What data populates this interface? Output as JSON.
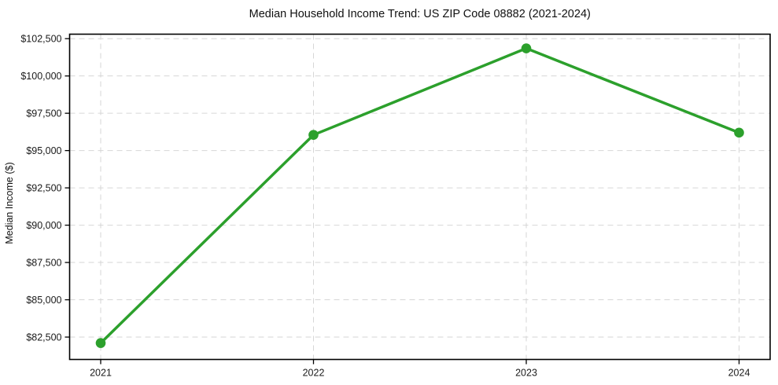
{
  "chart_data": {
    "type": "line",
    "title": "Median Household Income Trend: US ZIP Code 08882 (2021-2024)",
    "xlabel": "",
    "ylabel": "Median Income ($)",
    "x": [
      2021,
      2022,
      2023,
      2024
    ],
    "x_labels": [
      "2021",
      "2022",
      "2023",
      "2024"
    ],
    "series": [
      {
        "name": "Median Household Income",
        "values": [
          82100,
          96050,
          101850,
          96200
        ],
        "color": "#2ca02c",
        "marker": "circle"
      }
    ],
    "y_ticks": {
      "values": [
        82500,
        85000,
        87500,
        90000,
        92500,
        95000,
        97500,
        100000,
        102500
      ],
      "labels": [
        "$82,500",
        "$85,000",
        "$87,500",
        "$90,000",
        "$92,500",
        "$95,000",
        "$97,500",
        "$100,000",
        "$102,500"
      ]
    },
    "ylim": [
      81000,
      102800
    ],
    "grid": true,
    "legend": "none",
    "colors": {
      "background": "#ffffff",
      "grid": "#d6d6d6",
      "axis_border": "#000000",
      "text": "#1a1a1a"
    }
  }
}
